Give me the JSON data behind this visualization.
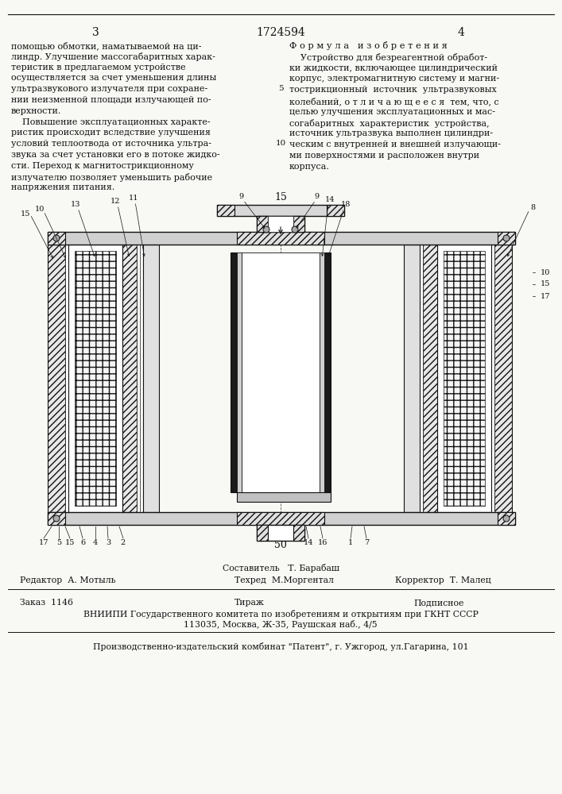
{
  "page_number_left": "3",
  "patent_number": "1724594",
  "page_number_right": "4",
  "background_color": "#f8f8f5",
  "text_color": "#111111",
  "left_column_text": [
    "помощью обмотки, наматываемой на ци-",
    "линдр. Улучшение массогабаритных харак-",
    "теристик в предлагаемом устройстве",
    "осуществляется за счет уменьшения длины",
    "ультразвукового излучателя при сохране-",
    "нии неизменной площади излучающей по-",
    "верхности.",
    "    Повышение эксплуатационных характе-",
    "ристик происходит вследствие улучшения",
    "условий теплоотвода от источника ультра-",
    "звука за счет установки его в потоке жидко-",
    "сти. Переход к магнитострикционному",
    "излучателю позволяет уменьшить рабочие",
    "напряжения питания."
  ],
  "line_number_5": "5",
  "line_number_10": "10",
  "right_column_header": "Ф о р м у л а   и з о б р е т е н и я",
  "right_column_text": [
    "    Устройство для безреагентной обработ-",
    "ки жидкости, включающее цилиндрический",
    "корпус, электромагнитную систему и магни-",
    "тострикционный  источник  ультразвуковых",
    "колебаний, о т л и ч а ю щ е е с я  тем, что, с",
    "целью улучшения эксплуатационных и мас-",
    "согабаритных  характеристик  устройства,",
    "источник ультразвука выполнен цилиндри-",
    "ческим с внутренней и внешней излучающи-",
    "ми поверхностями и расположен внутри",
    "корпуса."
  ],
  "figure_number": "15",
  "fig_bottom_number": "50",
  "footer_compiler_label": "Составитель   Т. Барабаш",
  "footer_editor_label": "Редактор  А. Мотыль",
  "footer_corrector_label": "Корректор  Т. Малец",
  "footer_techred_label": "Техред  М.Моргентал",
  "footer_order": "Заказ  1146",
  "footer_tirazh": "Тираж",
  "footer_podpisnoe": "Подписное",
  "footer_vniip1": "ВНИИПИ Государственного комитета по изобретениям и открытиям при ГКНТ СССР",
  "footer_vniip2": "113035, Москва, Ж-35, Раушская наб., 4/5",
  "footer_publisher": "Производственно-издательский комбинат \"Патент\", г. Ужгород, ул.Гагарина, 101"
}
